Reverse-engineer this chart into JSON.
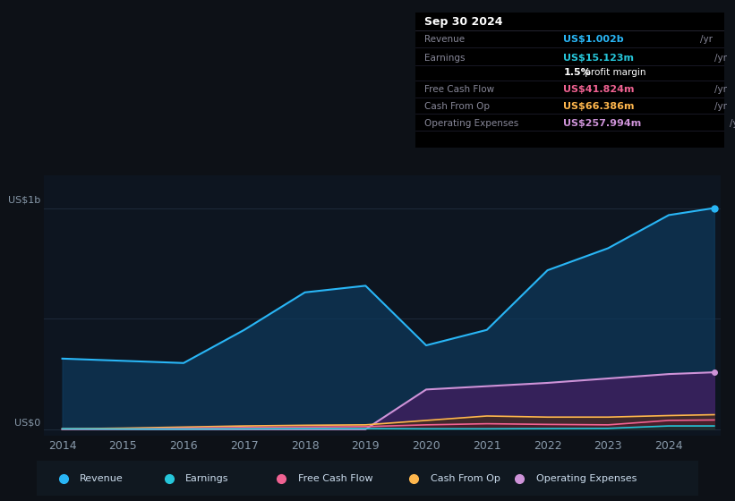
{
  "background_color": "#0d1117",
  "plot_bg_color": "#0d1520",
  "title_box": {
    "date": "Sep 30 2024",
    "rows": [
      {
        "label": "Revenue",
        "value": "US$1.002b /yr",
        "value_color": "#29b6f6"
      },
      {
        "label": "Earnings",
        "value": "US$15.123m /yr",
        "value_color": "#26c6da"
      },
      {
        "label": "",
        "value": "1.5% profit margin",
        "value_color": "#ffffff"
      },
      {
        "label": "Free Cash Flow",
        "value": "US$41.824m /yr",
        "value_color": "#f06292"
      },
      {
        "label": "Cash From Op",
        "value": "US$66.386m /yr",
        "value_color": "#ffb74d"
      },
      {
        "label": "Operating Expenses",
        "value": "US$257.994m /yr",
        "value_color": "#ce93d8"
      }
    ]
  },
  "ylabel": "US$1b",
  "ylabel0": "US$0",
  "x_years": [
    2014,
    2015,
    2016,
    2017,
    2018,
    2019,
    2020,
    2021,
    2022,
    2023,
    2024,
    2024.75
  ],
  "revenue": [
    0.32,
    0.31,
    0.3,
    0.45,
    0.62,
    0.65,
    0.38,
    0.45,
    0.72,
    0.82,
    0.97,
    1.002
  ],
  "earnings": [
    0.002,
    0.001,
    0.001,
    0.002,
    0.003,
    0.003,
    0.002,
    0.002,
    0.003,
    0.004,
    0.015,
    0.015
  ],
  "free_cash_flow": [
    0.001,
    0.001,
    0.005,
    0.008,
    0.01,
    0.012,
    0.02,
    0.025,
    0.022,
    0.02,
    0.04,
    0.042
  ],
  "cash_from_op": [
    0.002,
    0.005,
    0.01,
    0.015,
    0.018,
    0.02,
    0.04,
    0.06,
    0.055,
    0.055,
    0.062,
    0.066
  ],
  "operating_expenses": [
    0.0,
    0.0,
    0.0,
    0.0,
    0.0,
    0.0,
    0.18,
    0.195,
    0.21,
    0.23,
    0.25,
    0.258
  ],
  "revenue_color": "#29b6f6",
  "revenue_fill": "#0d3a5c",
  "earnings_color": "#26c6da",
  "earnings_fill": "#0a3535",
  "free_cash_flow_color": "#f06292",
  "free_cash_flow_fill": "#4a1a2a",
  "cash_from_op_color": "#ffb74d",
  "cash_from_op_fill": "#4a3010",
  "operating_expenses_color": "#ce93d8",
  "operating_expenses_fill": "#3d1f5e",
  "grid_color": "#1e2a3a",
  "text_color": "#8899aa",
  "legend_bg": "#101820"
}
